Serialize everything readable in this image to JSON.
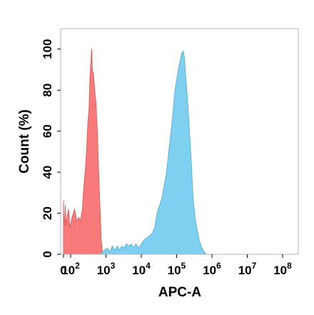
{
  "chart_data": {
    "type": "area",
    "title": "",
    "xlabel": "APC-A",
    "ylabel": "Count  (%)",
    "x_scale": "biexponential",
    "xlim": [
      0,
      100000000
    ],
    "ylim": [
      0,
      110
    ],
    "grid": false,
    "legend": "none",
    "x_ticks": [
      {
        "base": "0",
        "exp": "",
        "value": 0
      },
      {
        "base": "10",
        "exp": "2",
        "value": 100
      },
      {
        "base": "10",
        "exp": "3",
        "value": 1000
      },
      {
        "base": "10",
        "exp": "4",
        "value": 10000
      },
      {
        "base": "10",
        "exp": "5",
        "value": 100000
      },
      {
        "base": "10",
        "exp": "6",
        "value": 1000000
      },
      {
        "base": "10",
        "exp": "7",
        "value": 10000000
      },
      {
        "base": "10",
        "exp": "8",
        "value": 100000000
      }
    ],
    "y_ticks": [
      "0",
      "20",
      "40",
      "60",
      "80",
      "100"
    ],
    "series": [
      {
        "color": "#f97a7a",
        "edge": "#e06060",
        "points": [
          [
            0,
            26
          ],
          [
            5,
            18
          ],
          [
            10,
            16
          ],
          [
            15,
            14
          ],
          [
            25,
            24
          ],
          [
            35,
            14
          ],
          [
            50,
            18
          ],
          [
            70,
            22
          ],
          [
            90,
            13
          ],
          [
            110,
            18
          ],
          [
            130,
            22
          ],
          [
            150,
            16
          ],
          [
            170,
            18
          ],
          [
            190,
            16
          ],
          [
            205,
            20
          ],
          [
            215,
            22
          ],
          [
            230,
            30
          ],
          [
            250,
            38
          ],
          [
            270,
            45
          ],
          [
            290,
            55
          ],
          [
            310,
            65
          ],
          [
            330,
            70
          ],
          [
            350,
            85
          ],
          [
            370,
            92
          ],
          [
            385,
            98
          ],
          [
            395,
            100
          ],
          [
            410,
            90
          ],
          [
            440,
            88
          ],
          [
            480,
            80
          ],
          [
            520,
            74
          ],
          [
            570,
            60
          ],
          [
            620,
            40
          ],
          [
            680,
            22
          ],
          [
            730,
            8
          ],
          [
            800,
            0
          ]
        ]
      },
      {
        "color": "#7fd0f0",
        "edge": "#5ab4d8",
        "points": [
          [
            700,
            0
          ],
          [
            900,
            2
          ],
          [
            1100,
            3
          ],
          [
            1300,
            1
          ],
          [
            1500,
            4
          ],
          [
            1800,
            2
          ],
          [
            2100,
            4
          ],
          [
            2400,
            2
          ],
          [
            2800,
            4
          ],
          [
            3200,
            3
          ],
          [
            3800,
            5
          ],
          [
            4400,
            4
          ],
          [
            5200,
            5
          ],
          [
            6000,
            3
          ],
          [
            7000,
            5
          ],
          [
            8500,
            3
          ],
          [
            10000,
            5
          ],
          [
            12000,
            7
          ],
          [
            14500,
            8
          ],
          [
            17000,
            9
          ],
          [
            20000,
            10
          ],
          [
            24000,
            13
          ],
          [
            28000,
            20
          ],
          [
            33000,
            24
          ],
          [
            38000,
            27
          ],
          [
            44000,
            33
          ],
          [
            52000,
            40
          ],
          [
            60000,
            50
          ],
          [
            70000,
            60
          ],
          [
            80000,
            70
          ],
          [
            90000,
            80
          ],
          [
            100000,
            85
          ],
          [
            112000,
            90
          ],
          [
            125000,
            94
          ],
          [
            140000,
            98
          ],
          [
            155000,
            99
          ],
          [
            165000,
            96
          ],
          [
            175000,
            90
          ],
          [
            190000,
            82
          ],
          [
            210000,
            72
          ],
          [
            230000,
            60
          ],
          [
            260000,
            45
          ],
          [
            290000,
            28
          ],
          [
            330000,
            18
          ],
          [
            380000,
            12
          ],
          [
            450000,
            6
          ],
          [
            550000,
            2
          ],
          [
            700000,
            0
          ]
        ]
      }
    ]
  }
}
